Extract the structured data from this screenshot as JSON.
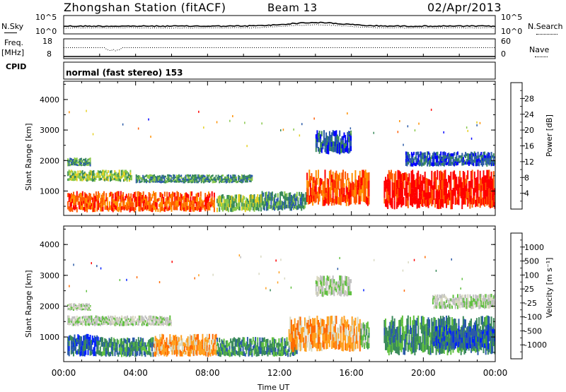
{
  "header": {
    "station": "Zhongshan Station (fitACF)",
    "beam": "Beam 13",
    "date": "02/Apr/2013"
  },
  "sky_panel": {
    "left_label": "N.Sky",
    "right_label": "N.Search",
    "left_ticks": [
      "10^5",
      "10^0"
    ],
    "right_ticks": [
      "10^5",
      "10^0"
    ]
  },
  "freq_panel": {
    "left_label_1": "Freq.",
    "left_label_2": "[MHz]",
    "right_label": "Nave",
    "left_ticks": [
      "18",
      "8"
    ],
    "right_ticks": [
      "60",
      "0"
    ]
  },
  "cpid": {
    "label": "CPID",
    "text": "normal (fast stereo) 153"
  },
  "time_axis": {
    "label": "Time UT",
    "ticks": [
      "00:00",
      "04:00",
      "08:00",
      "12:00",
      "16:00",
      "20:00",
      "00:00"
    ]
  },
  "colors": {
    "power": [
      "#0000ff",
      "#2a5aa8",
      "#3a8a5a",
      "#88c84a",
      "#e6d020",
      "#ff9000",
      "#ff5a00",
      "#ff0000"
    ],
    "velocity": [
      "#ff0000",
      "#ff6a00",
      "#ffa020",
      "#d8d8c0",
      "#c0c0c0",
      "#60c040",
      "#3a8a5a",
      "#2a5aa8",
      "#0020ff"
    ]
  },
  "chart_data": [
    {
      "type": "heatmap",
      "panel": "power",
      "ylabel": "Slant Range [km]",
      "xlabel": "",
      "ylim": [
        200,
        4600
      ],
      "xlim_hours": [
        0,
        24
      ],
      "y_ticks": [
        1000,
        2000,
        3000,
        4000
      ],
      "colorbar_label": "Power [dB]",
      "colorbar_ticks": [
        "4",
        "8",
        "12",
        "16",
        "20",
        "24",
        "28"
      ],
      "blobs": [
        {
          "t0": 0.2,
          "t1": 8.4,
          "r0": 300,
          "r1": 1000,
          "level": 6
        },
        {
          "t0": 0.2,
          "t1": 3.8,
          "r0": 1300,
          "r1": 1700,
          "level": 3
        },
        {
          "t0": 0.2,
          "t1": 1.5,
          "r0": 1800,
          "r1": 2100,
          "level": 2
        },
        {
          "t0": 4.0,
          "t1": 10.5,
          "r0": 1250,
          "r1": 1550,
          "level": 2
        },
        {
          "t0": 8.5,
          "t1": 11.0,
          "r0": 300,
          "r1": 900,
          "level": 3
        },
        {
          "t0": 11.0,
          "t1": 13.5,
          "r0": 350,
          "r1": 1000,
          "level": 2
        },
        {
          "t0": 13.5,
          "t1": 17.0,
          "r0": 500,
          "r1": 1700,
          "level": 6
        },
        {
          "t0": 14.0,
          "t1": 16.0,
          "r0": 2200,
          "r1": 3000,
          "level": 1
        },
        {
          "t0": 17.8,
          "t1": 24.0,
          "r0": 400,
          "r1": 1700,
          "level": 7
        },
        {
          "t0": 19.0,
          "t1": 24.0,
          "r0": 1800,
          "r1": 2300,
          "level": 1
        }
      ]
    },
    {
      "type": "heatmap",
      "panel": "velocity",
      "ylabel": "Slant Range [km]",
      "xlabel": "Time UT",
      "ylim": [
        200,
        4600
      ],
      "xlim_hours": [
        0,
        24
      ],
      "y_ticks": [
        1000,
        2000,
        3000,
        4000
      ],
      "colorbar_label": "Velocity [m s⁻¹]",
      "colorbar_ticks": [
        "-1000",
        "-500",
        "-100",
        "-25",
        "25",
        "100",
        "500",
        "1000"
      ],
      "blobs": [
        {
          "t0": 0.2,
          "t1": 2.0,
          "r0": 350,
          "r1": 1100,
          "level": 7
        },
        {
          "t0": 0.2,
          "t1": 6.0,
          "r0": 1350,
          "r1": 1700,
          "level": 4
        },
        {
          "t0": 0.2,
          "t1": 1.5,
          "r0": 1850,
          "r1": 2100,
          "level": 4
        },
        {
          "t0": 2.0,
          "t1": 5.0,
          "r0": 350,
          "r1": 1000,
          "level": 6
        },
        {
          "t0": 5.0,
          "t1": 8.5,
          "r0": 350,
          "r1": 1100,
          "level": 2
        },
        {
          "t0": 8.5,
          "t1": 13.0,
          "r0": 350,
          "r1": 1000,
          "level": 6
        },
        {
          "t0": 12.5,
          "t1": 16.5,
          "r0": 500,
          "r1": 1700,
          "level": 2
        },
        {
          "t0": 14.0,
          "t1": 16.0,
          "r0": 2300,
          "r1": 3000,
          "level": 4
        },
        {
          "t0": 16.5,
          "t1": 17.0,
          "r0": 600,
          "r1": 1500,
          "level": 5
        },
        {
          "t0": 17.8,
          "t1": 24.0,
          "r0": 400,
          "r1": 1700,
          "level": 6
        },
        {
          "t0": 20.5,
          "t1": 24.0,
          "r0": 600,
          "r1": 1400,
          "level": 7
        },
        {
          "t0": 20.5,
          "t1": 24.0,
          "r0": 1900,
          "r1": 2400,
          "level": 4
        }
      ]
    }
  ]
}
